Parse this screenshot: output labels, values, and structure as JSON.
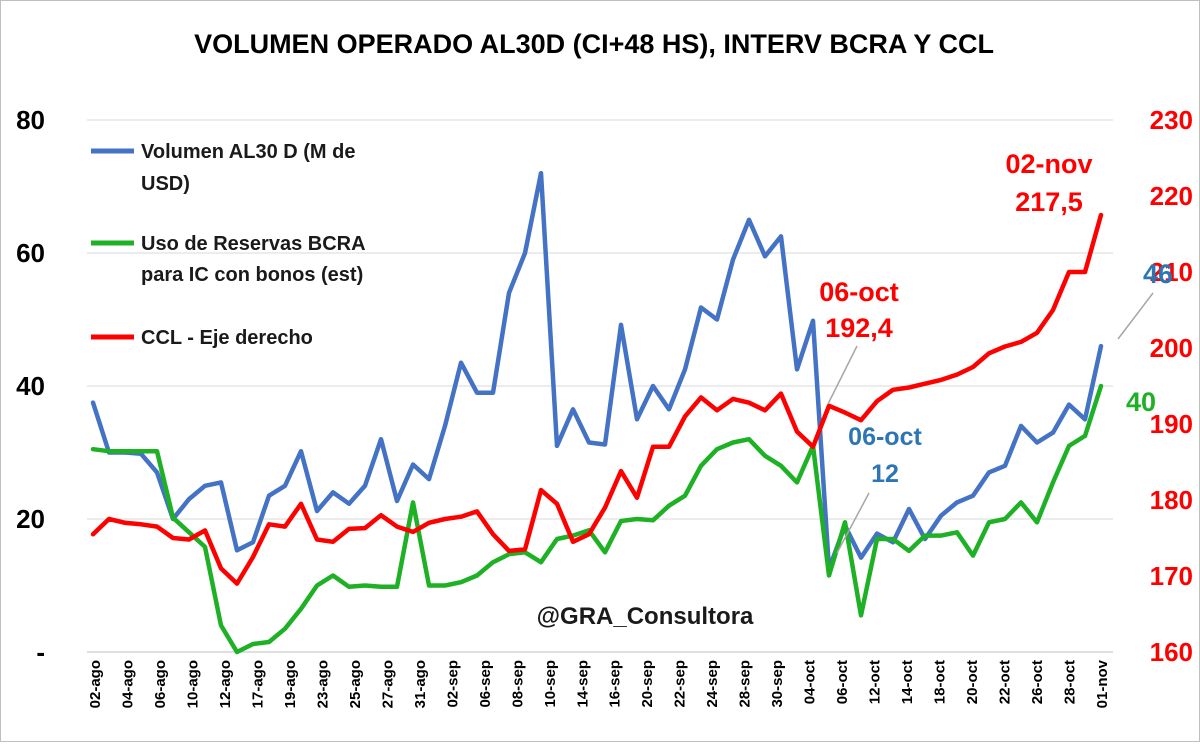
{
  "chart_data": {
    "type": "line",
    "title": "VOLUMEN OPERADO AL30D (CI+48 HS), INTERV BCRA Y CCL",
    "watermark": "@GRA_Consultora",
    "colors": {
      "volume": "#4472c4",
      "reserves": "#1fb125",
      "ccl": "#ff0000"
    },
    "grid": true,
    "legend_position": "top-left",
    "y_left": {
      "range": [
        0,
        80
      ],
      "ticks": [
        "-",
        "20",
        "40",
        "60",
        "80"
      ]
    },
    "y_right": {
      "range": [
        160,
        230
      ],
      "ticks": [
        "160",
        "170",
        "180",
        "190",
        "200",
        "210",
        "220",
        "230"
      ]
    },
    "x_tick_labels": [
      "02-ago",
      "04-ago",
      "06-ago",
      "10-ago",
      "12-ago",
      "17-ago",
      "19-ago",
      "23-ago",
      "25-ago",
      "27-ago",
      "31-ago",
      "02-sep",
      "06-sep",
      "08-sep",
      "10-sep",
      "14-sep",
      "16-sep",
      "20-sep",
      "22-sep",
      "24-sep",
      "28-sep",
      "30-sep",
      "04-oct",
      "06-oct",
      "12-oct",
      "14-oct",
      "18-oct",
      "20-oct",
      "22-oct",
      "26-oct",
      "28-oct",
      "01-nov"
    ],
    "series": [
      {
        "name": "Volumen AL30 D (M de USD)",
        "axis": "left",
        "values": [
          37.5,
          30,
          30,
          29.8,
          27,
          20,
          23,
          25,
          25.5,
          15.3,
          16.5,
          23.5,
          25,
          30.2,
          21.2,
          24,
          22.3,
          25,
          32,
          22.7,
          28.2,
          26,
          34,
          43.5,
          39,
          39,
          54,
          60,
          72,
          31,
          36.5,
          31.5,
          31.2,
          49.2,
          35,
          40,
          36.5,
          42.5,
          51.8,
          50,
          59,
          65,
          59.5,
          62.5,
          42.5,
          49.8,
          12.5,
          19,
          14.2,
          17.8,
          16.5,
          21.5,
          17,
          20.5,
          22.5,
          23.5,
          27,
          28,
          34,
          31.5,
          33,
          37.2,
          35,
          46
        ]
      },
      {
        "name": "Uso de Reservas BCRA para IC con bonos (est)",
        "axis": "left",
        "values": [
          30.5,
          30.2,
          30.2,
          30.2,
          30.2,
          20.2,
          18,
          15.8,
          4,
          0,
          1.2,
          1.5,
          3.5,
          6.5,
          10,
          11.5,
          9.8,
          10,
          9.8,
          9.8,
          22.5,
          10,
          10,
          10.5,
          11.5,
          13.5,
          14.7,
          15,
          13.5,
          17,
          17.5,
          18.3,
          15,
          19.7,
          20,
          19.8,
          22,
          23.5,
          28,
          30.5,
          31.5,
          32,
          29.5,
          28,
          25.5,
          31,
          11.5,
          19.5,
          5.5,
          17,
          17,
          15.2,
          17.5,
          17.5,
          18,
          14.5,
          19.5,
          20,
          22.5,
          19.5,
          25.5,
          31,
          32.5,
          40
        ]
      },
      {
        "name": "CCL - Eje derecho",
        "axis": "right",
        "values": [
          175.5,
          177.5,
          177,
          176.8,
          176.5,
          175,
          174.8,
          176,
          171,
          169,
          172.5,
          176.8,
          176.5,
          179.5,
          174.8,
          174.5,
          176.2,
          176.3,
          178,
          176.5,
          175.8,
          177,
          177.5,
          177.8,
          178.5,
          175.5,
          173.3,
          173.5,
          181.3,
          179.5,
          174.5,
          175.5,
          179,
          183.8,
          180.3,
          187,
          187,
          191,
          193.5,
          191.8,
          193.3,
          192.8,
          191.8,
          194,
          189,
          187,
          192.4,
          191.5,
          190.5,
          193,
          194.5,
          194.8,
          195.3,
          195.8,
          196.5,
          197.5,
          199.3,
          200.2,
          200.8,
          202,
          205,
          210,
          210,
          217.5
        ]
      }
    ],
    "annotations": [
      {
        "date": "02-nov",
        "value": "217,5"
      },
      {
        "date": "06-oct",
        "value": "192,4"
      },
      {
        "date": "06-oct",
        "value": "12"
      },
      {
        "value": "46"
      },
      {
        "value": "40"
      }
    ]
  }
}
